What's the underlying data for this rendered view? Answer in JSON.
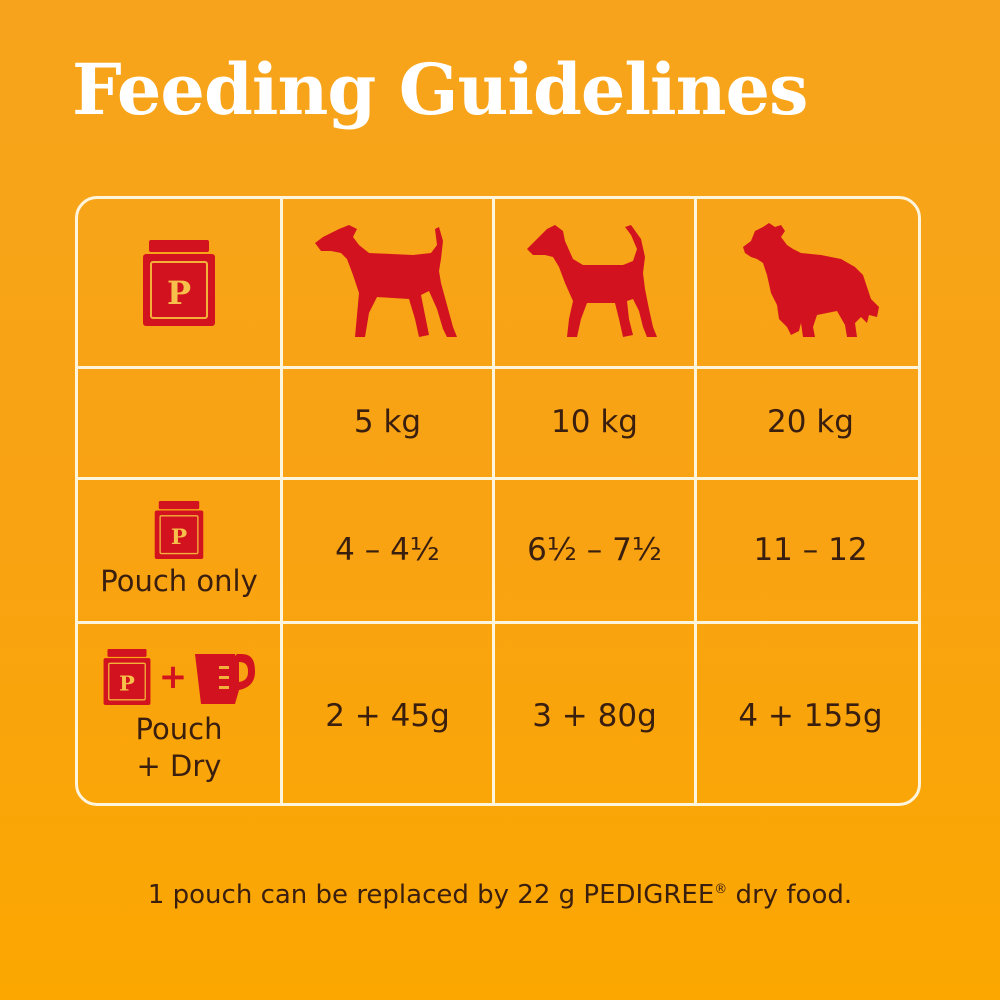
{
  "title": "Feeding Guidelines",
  "colors": {
    "background": "#f9a312",
    "title": "#ffffff",
    "grid_lines": "#fff4dc",
    "icon_red": "#d2131f",
    "text": "#3a1f0f"
  },
  "pouch_icon_letter": "P",
  "weights": [
    "5 kg",
    "10 kg",
    "20 kg"
  ],
  "rows": [
    {
      "label": "Pouch only",
      "values": [
        "4 – 4½",
        "6½ – 7½",
        "11 – 12"
      ]
    },
    {
      "label_line1": "Pouch",
      "label_line2": "+ Dry",
      "plus": "+",
      "values": [
        "2 + 45g",
        "3 + 80g",
        "4 + 155g"
      ]
    }
  ],
  "footer": {
    "text_before": "1 pouch can be replaced by 22 g PEDIGREE",
    "registered": "®",
    "text_after": " dry food."
  }
}
